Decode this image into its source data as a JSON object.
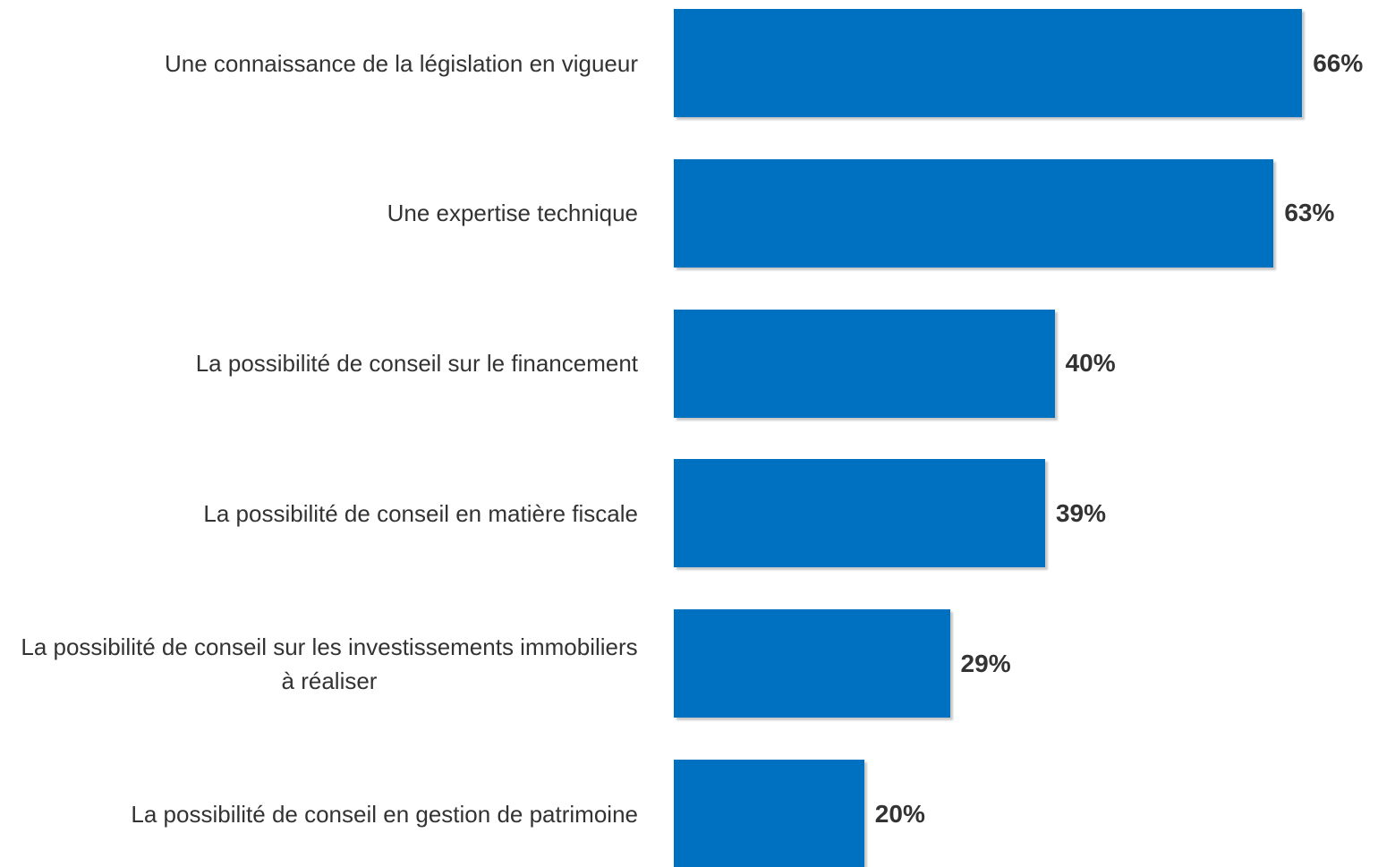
{
  "chart_data": {
    "type": "bar",
    "orientation": "horizontal",
    "categories": [
      "Une connaissance de la législation en vigueur",
      "Une expertise technique",
      "La possibilité de conseil sur le financement",
      "La possibilité de conseil en matière fiscale",
      "La possibilité de conseil sur les investissements immobiliers à réaliser",
      "La possibilité de conseil en gestion de patrimoine"
    ],
    "values": [
      66,
      63,
      40,
      39,
      29,
      20
    ],
    "value_labels": [
      "66%",
      "63%",
      "40%",
      "39%",
      "29%",
      "20%"
    ],
    "color": "#0070c0"
  }
}
